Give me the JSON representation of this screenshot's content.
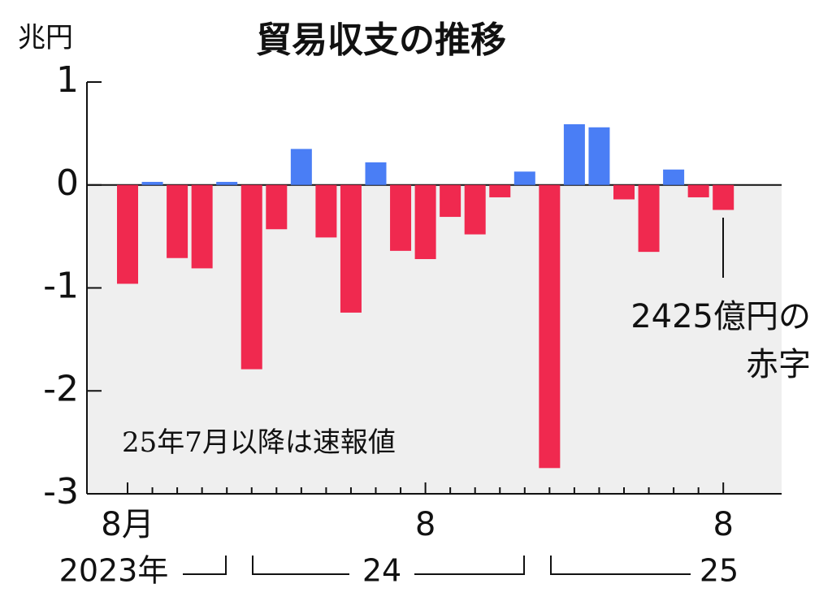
{
  "chart_data": {
    "type": "bar",
    "title": "貿易収支の推移",
    "y_unit": "兆円",
    "categories": [
      "8月",
      null,
      null,
      null,
      null,
      null,
      null,
      null,
      null,
      null,
      null,
      null,
      "8",
      null,
      null,
      null,
      null,
      null,
      null,
      null,
      null,
      null,
      null,
      null,
      "8"
    ],
    "year_labels": [
      "2023年",
      "24",
      "25"
    ],
    "values": [
      -0.96,
      0.03,
      -0.71,
      -0.81,
      0.03,
      -1.79,
      -0.43,
      0.35,
      -0.51,
      -1.24,
      0.22,
      -0.64,
      -0.72,
      -0.31,
      -0.48,
      -0.12,
      0.13,
      -2.75,
      0.59,
      0.56,
      -0.14,
      -0.65,
      0.15,
      -0.12,
      -0.2425
    ],
    "positive_color": "#4a7ef5",
    "negative_color": "#f0294f",
    "ylim": [
      -3,
      1
    ],
    "yticks": [
      1,
      0,
      -1,
      -2,
      -3
    ],
    "annotations": [
      "25年7月以降は速報値",
      "2425億円の",
      "赤字"
    ]
  }
}
